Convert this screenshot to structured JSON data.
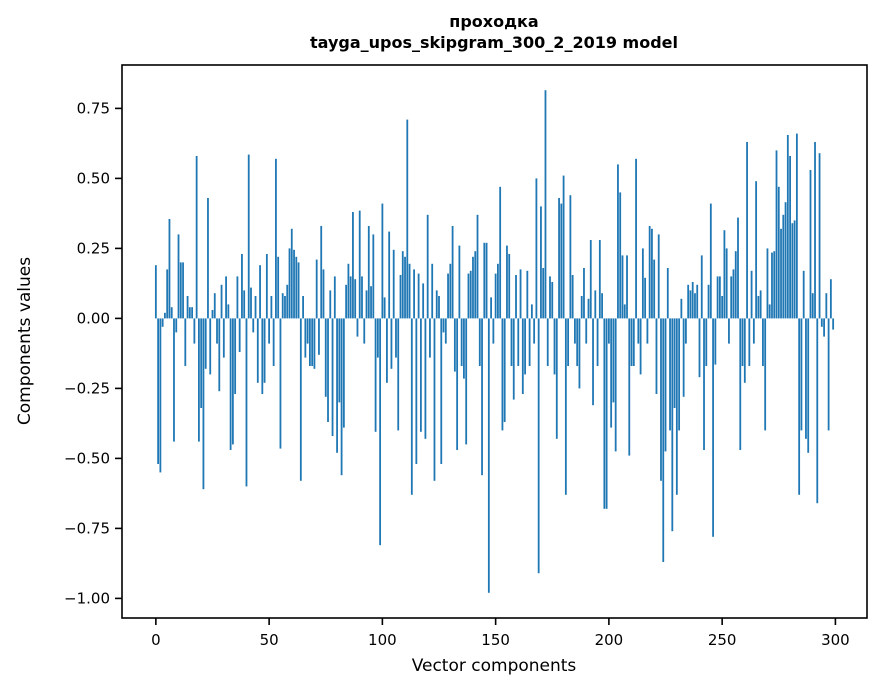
{
  "figure": {
    "title_line1": "проходка",
    "title_line2": "tayga_upos_skipgram_300_2_2019 model"
  },
  "chart_data": {
    "type": "bar",
    "title": "проходка\ntayga_upos_skipgram_300_2_2019 model",
    "xlabel": "Vector components",
    "ylabel": "Components values",
    "x_start": 0,
    "n_bars": 300,
    "x_ticks": [
      0,
      50,
      100,
      150,
      200,
      250,
      300
    ],
    "y_tick_labels": [
      "0.75",
      "0.50",
      "0.25",
      "0.00",
      "−0.25",
      "−0.50",
      "−0.75",
      "−1.00"
    ],
    "y_tick_values": [
      0.75,
      0.5,
      0.25,
      0.0,
      -0.25,
      -0.5,
      -0.75,
      -1.0
    ],
    "xlim": [
      -14.95,
      313.95
    ],
    "ylim": [
      -1.07,
      0.905
    ],
    "grid": false,
    "legend": null,
    "bar_color": "#1f77b4",
    "spine_color": "#000000",
    "values": [
      0.19,
      -0.52,
      -0.55,
      -0.03,
      0.02,
      0.175,
      0.355,
      0.04,
      -0.44,
      -0.05,
      0.3,
      0.2,
      0.2,
      -0.17,
      0.08,
      0.04,
      0.04,
      -0.09,
      0.58,
      -0.44,
      -0.32,
      -0.61,
      -0.18,
      0.43,
      -0.2,
      0.03,
      0.09,
      -0.09,
      -0.26,
      0.12,
      -0.14,
      0.15,
      0.05,
      -0.47,
      -0.45,
      -0.27,
      0.15,
      -0.12,
      0.23,
      0.1,
      -0.6,
      0.585,
      0.11,
      -0.05,
      0.08,
      -0.23,
      0.19,
      -0.27,
      -0.23,
      0.23,
      -0.09,
      0.08,
      -0.17,
      0.57,
      0.22,
      -0.465,
      0.09,
      0.08,
      0.12,
      0.25,
      0.32,
      0.245,
      0.22,
      0.2,
      -0.58,
      0.08,
      -0.14,
      -0.09,
      -0.17,
      -0.17,
      -0.18,
      0.21,
      -0.13,
      0.33,
      0.175,
      -0.28,
      -0.37,
      0.1,
      -0.42,
      0.15,
      -0.48,
      -0.3,
      -0.56,
      -0.39,
      0.12,
      0.195,
      0.15,
      0.38,
      0.14,
      -0.065,
      0.385,
      0.15,
      -0.09,
      0.1,
      0.33,
      0.115,
      0.3,
      -0.405,
      -0.14,
      -0.81,
      0.41,
      0.075,
      -0.23,
      0.31,
      -0.18,
      0.245,
      -0.14,
      -0.4,
      0.155,
      0.24,
      0.22,
      0.71,
      0.195,
      -0.63,
      0.175,
      -0.52,
      0.16,
      -0.405,
      0.125,
      -0.43,
      0.37,
      -0.14,
      0.195,
      -0.58,
      0.1,
      0.08,
      -0.52,
      -0.05,
      -0.09,
      0.16,
      0.195,
      0.33,
      -0.19,
      -0.47,
      0.26,
      -0.17,
      -0.215,
      -0.45,
      0.16,
      0.17,
      0.22,
      0.24,
      0.37,
      -0.17,
      -0.56,
      0.27,
      0.27,
      -0.98,
      0.075,
      -0.09,
      0.16,
      0.195,
      0.47,
      -0.4,
      -0.37,
      0.26,
      0.23,
      -0.17,
      -0.29,
      0.155,
      -0.17,
      0.175,
      -0.27,
      -0.2,
      0.17,
      -0.17,
      0.05,
      -0.09,
      0.5,
      -0.91,
      0.4,
      0.18,
      0.815,
      -0.17,
      0.15,
      0.13,
      -0.2,
      -0.43,
      0.43,
      0.41,
      0.51,
      -0.63,
      -0.17,
      0.44,
      0.155,
      -0.09,
      -0.17,
      -0.25,
      0.08,
      0.18,
      -0.09,
      0.07,
      0.28,
      -0.31,
      0.1,
      -0.17,
      0.28,
      0.09,
      -0.68,
      -0.68,
      -0.09,
      -0.39,
      -0.3,
      -0.475,
      0.55,
      0.45,
      0.225,
      0.05,
      0.225,
      -0.49,
      -0.17,
      -0.17,
      0.57,
      -0.09,
      -0.2,
      0.25,
      0.145,
      -0.09,
      0.33,
      0.32,
      0.21,
      -0.27,
      0.3,
      -0.58,
      -0.87,
      -0.475,
      0.18,
      -0.4,
      -0.76,
      -0.32,
      -0.63,
      -0.4,
      0.07,
      -0.28,
      -0.09,
      0.12,
      0.1,
      0.13,
      0.09,
      0.12,
      -0.21,
      0.225,
      -0.47,
      -0.17,
      0.12,
      0.41,
      -0.78,
      -0.165,
      0.15,
      0.15,
      0.08,
      0.315,
      0.25,
      -0.09,
      0.15,
      0.175,
      0.24,
      0.36,
      -0.47,
      -0.17,
      -0.23,
      0.63,
      -0.17,
      0.17,
      -0.09,
      0.49,
      0.08,
      0.1,
      -0.17,
      -0.4,
      0.25,
      0.05,
      0.235,
      0.24,
      0.6,
      0.47,
      0.32,
      0.37,
      0.415,
      0.655,
      0.58,
      0.34,
      0.35,
      0.66,
      -0.63,
      -0.4,
      0.17,
      -0.43,
      -0.48,
      0.53,
      0.09,
      0.63,
      -0.66,
      0.59,
      -0.03,
      -0.065,
      0.09,
      -0.4,
      0.14,
      -0.04
    ]
  }
}
